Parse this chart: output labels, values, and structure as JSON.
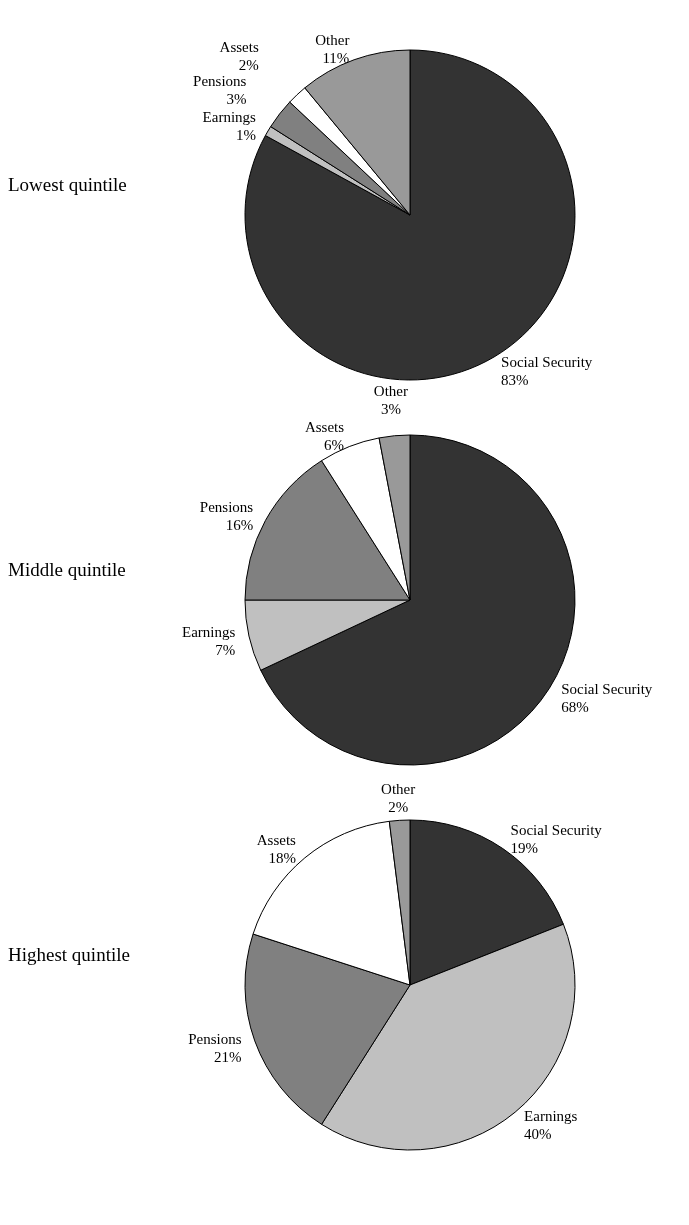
{
  "chart_data": [
    {
      "type": "pie",
      "title": "Lowest quintile",
      "categories": [
        "Social Security",
        "Earnings",
        "Pensions",
        "Assets",
        "Other"
      ],
      "values": [
        83,
        1,
        3,
        2,
        11
      ],
      "value_labels": [
        "83%",
        "1%",
        "3%",
        "2%",
        "11%"
      ],
      "colors": [
        "#333333",
        "#c0c0c0",
        "#808080",
        "#ffffff",
        "#999999"
      ],
      "legend": false
    },
    {
      "type": "pie",
      "title": "Middle quintile",
      "categories": [
        "Social Security",
        "Earnings",
        "Pensions",
        "Assets",
        "Other"
      ],
      "values": [
        68,
        7,
        16,
        6,
        3
      ],
      "value_labels": [
        "68%",
        "7%",
        "16%",
        "6%",
        "3%"
      ],
      "colors": [
        "#333333",
        "#c0c0c0",
        "#808080",
        "#ffffff",
        "#999999"
      ],
      "legend": false
    },
    {
      "type": "pie",
      "title": "Highest quintile",
      "categories": [
        "Social Security",
        "Earnings",
        "Pensions",
        "Assets",
        "Other"
      ],
      "values": [
        19,
        40,
        21,
        18,
        2
      ],
      "value_labels": [
        "19%",
        "40%",
        "21%",
        "18%",
        "2%"
      ],
      "colors": [
        "#333333",
        "#c0c0c0",
        "#808080",
        "#ffffff",
        "#999999"
      ],
      "legend": false
    }
  ]
}
